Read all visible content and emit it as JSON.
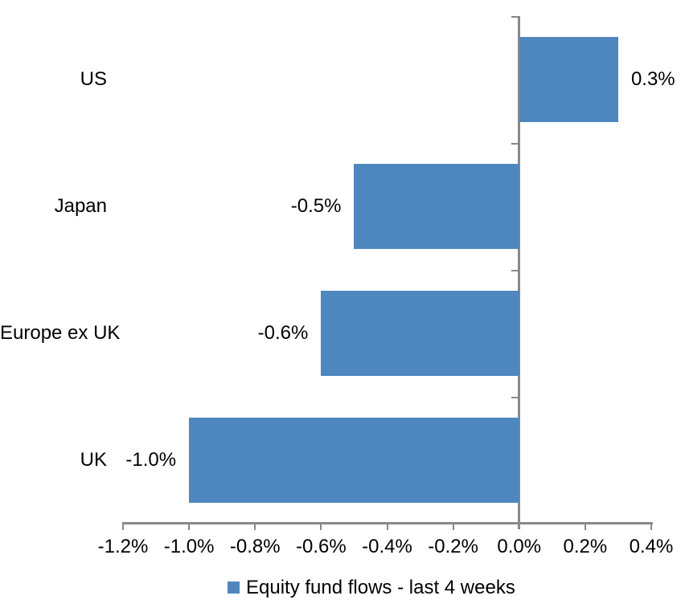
{
  "chart_data": {
    "type": "bar",
    "orientation": "horizontal",
    "title": "",
    "xlabel": "",
    "ylabel": "",
    "categories": [
      "US",
      "Japan",
      "Europe ex UK",
      "UK"
    ],
    "values": [
      0.3,
      -0.5,
      -0.6,
      -1.0
    ],
    "data_labels": [
      "0.3%",
      "-0.5%",
      "-0.6%",
      "-1.0%"
    ],
    "series_name": "Equity fund flows - last 4 weeks",
    "xlim": [
      -1.2,
      0.4
    ],
    "x_tick_labels": [
      "-1.2%",
      "-1.0%",
      "-0.8%",
      "-0.6%",
      "-0.4%",
      "-0.2%",
      "0.0%",
      "0.2%",
      "0.4%"
    ],
    "grid": false,
    "legend_position": "bottom",
    "colors": {
      "bar": "#4E87BE",
      "axis": "#898989",
      "text": "#000000",
      "background": "#FFFFFF"
    }
  }
}
